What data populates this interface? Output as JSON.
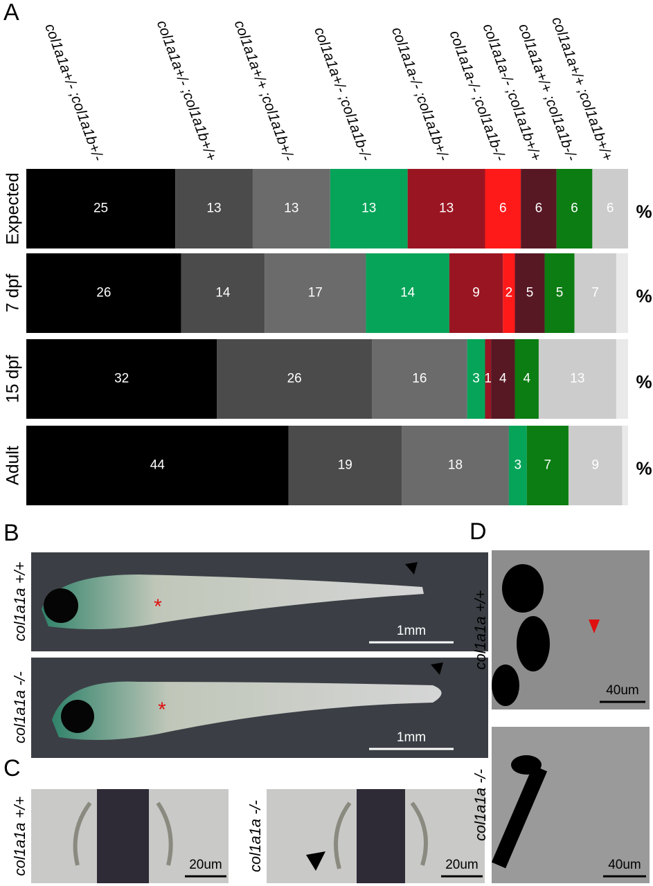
{
  "chart_data": {
    "type": "stacked-barh",
    "categories": [
      "Expected",
      "7 dpf",
      "15 dpf",
      "Adult"
    ],
    "unit": "%",
    "series": [
      {
        "name": "col1a1a+/- ;col1a1b+/-",
        "color": "#000000",
        "values": [
          25,
          26,
          32,
          44
        ]
      },
      {
        "name": "col1a1a+/- ;col1a1b+/+",
        "color": "#4b4b4b",
        "values": [
          13,
          14,
          26,
          19
        ]
      },
      {
        "name": "col1a1a+/+ ;col1a1b+/-",
        "color": "#6b6b6b",
        "values": [
          13,
          17,
          16,
          18
        ]
      },
      {
        "name": "col1a1a+/- ;col1a1b-/-",
        "color": "#05a459",
        "values": [
          13,
          14,
          3,
          3
        ]
      },
      {
        "name": "col1a1a-/- ;col1a1b+/-",
        "color": "#9a1522",
        "values": [
          13,
          9,
          1,
          null
        ]
      },
      {
        "name": "col1a1a-/- ;col1a1b-/-",
        "color": "#ff1a1a",
        "values": [
          6,
          2,
          null,
          null
        ]
      },
      {
        "name": "col1a1a-/- ;col1a1b+/+",
        "color": "#571824",
        "values": [
          6,
          5,
          4,
          null
        ]
      },
      {
        "name": "col1a1a+/+ ;col1a1b-/-",
        "color": "#0b7d12",
        "values": [
          6,
          5,
          4,
          7
        ]
      },
      {
        "name": "col1a1a+/+ ;col1a1b+/+",
        "color": "#cccccc",
        "values": [
          6,
          7,
          13,
          9
        ]
      }
    ]
  },
  "figure": {
    "panel_labels": [
      "A",
      "B",
      "C",
      "D"
    ],
    "panel_b": [
      {
        "label": "col1a1a +/+",
        "scale": "1mm"
      },
      {
        "label": "col1a1a -/-",
        "scale": "1mm"
      }
    ],
    "panel_c": [
      {
        "label": "col1a1a +/+",
        "scale": "20um"
      },
      {
        "label": "col1a1a -/-",
        "scale": "20um"
      }
    ],
    "panel_d": [
      {
        "label": "col1a1a +/+",
        "scale": "40um"
      },
      {
        "label": "col1a1a -/-",
        "scale": "40um"
      }
    ]
  }
}
